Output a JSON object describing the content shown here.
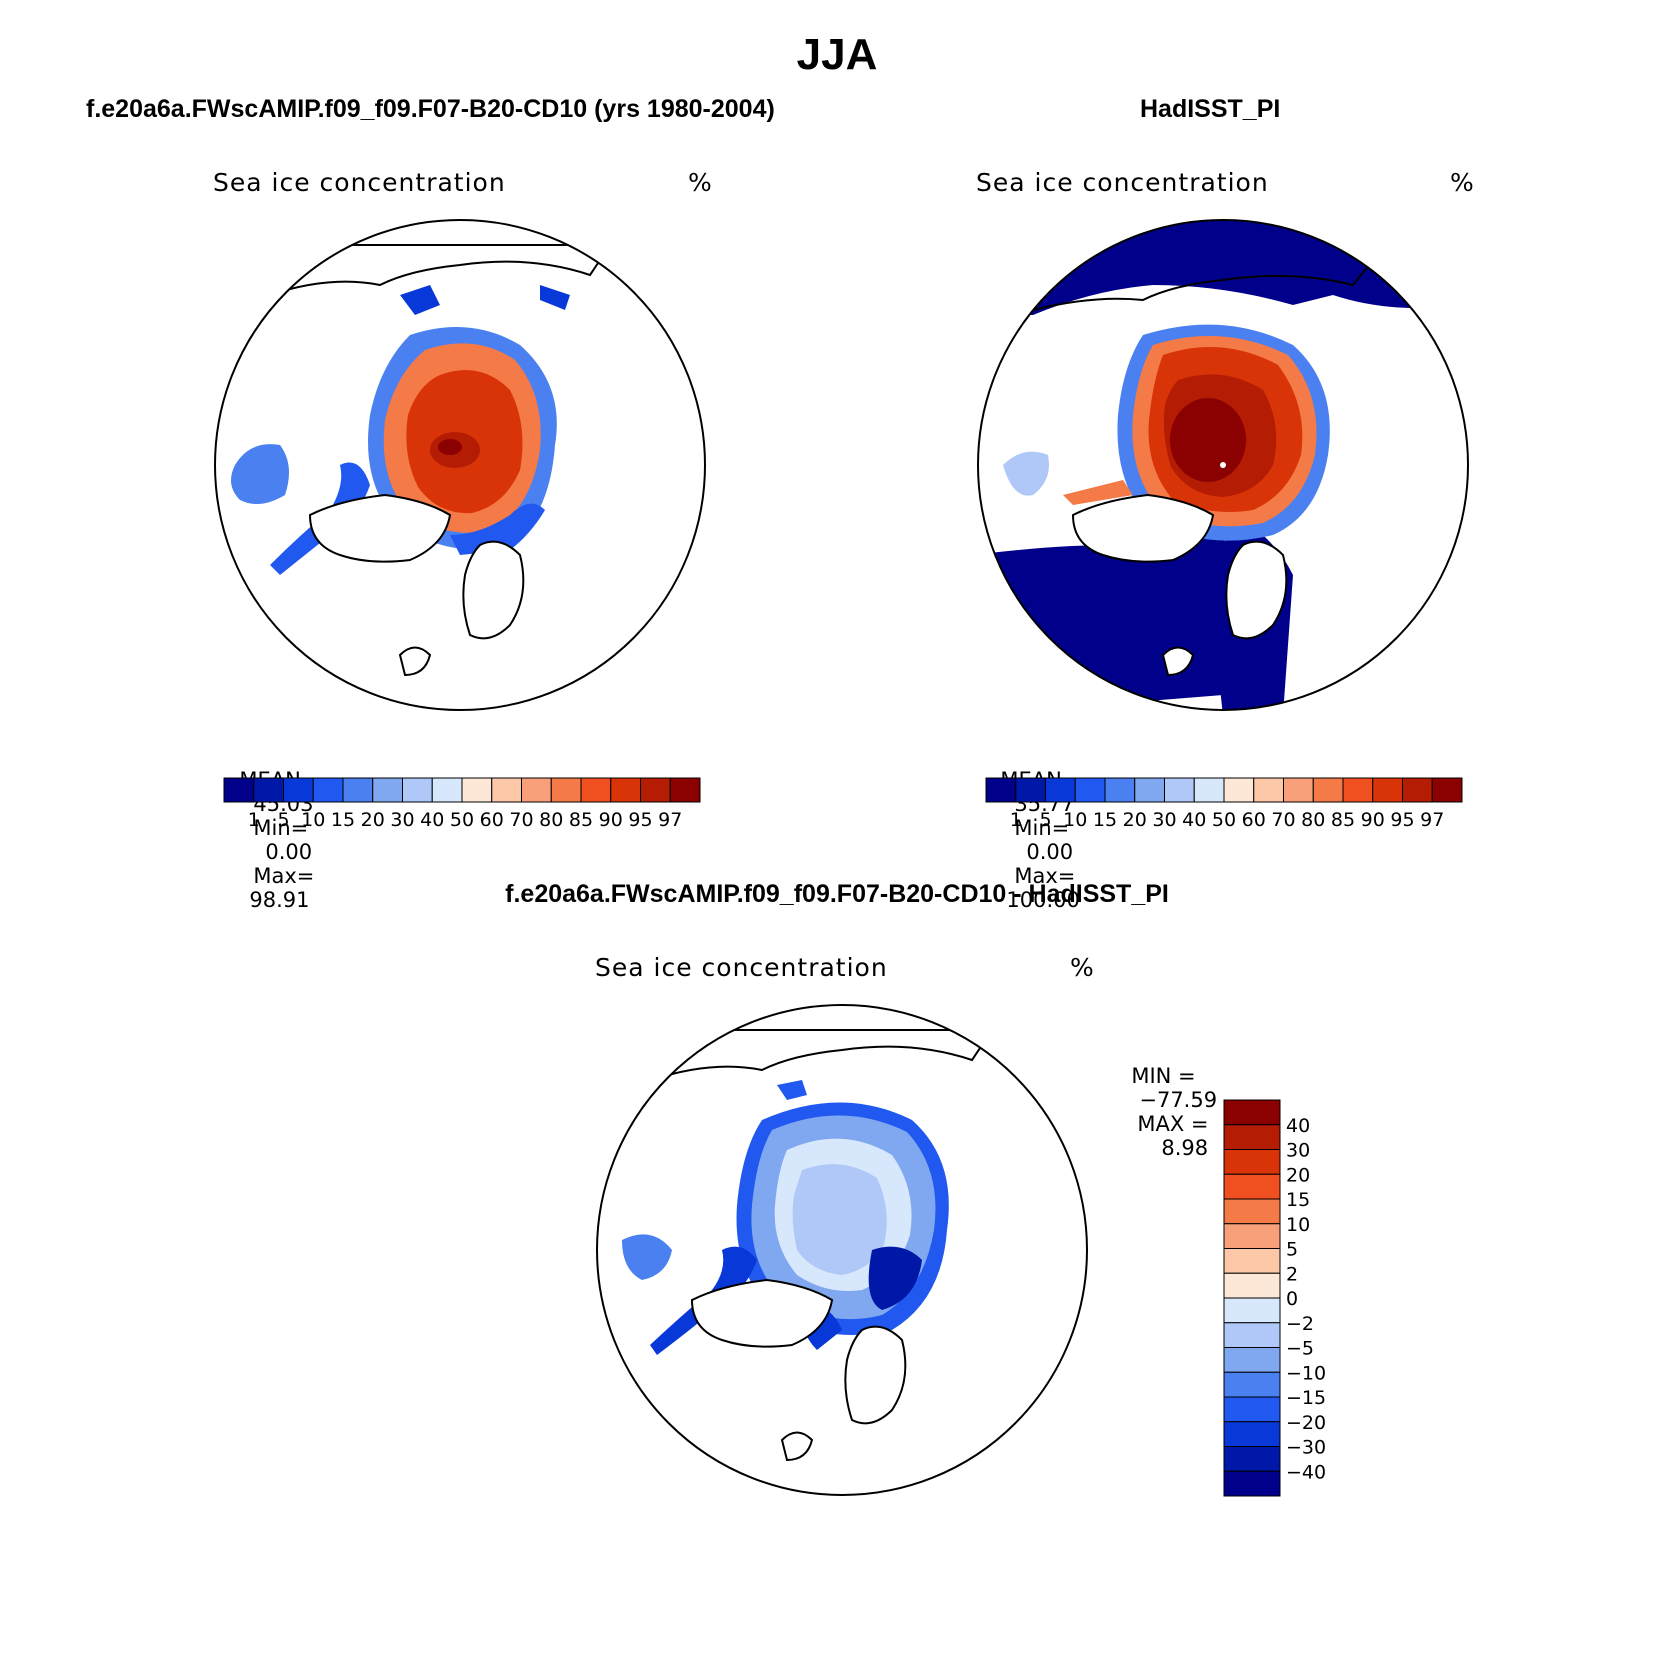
{
  "main_title": "JJA",
  "panels": [
    {
      "id": "model",
      "header": "f.e20a6a.FWscAMIP.f09_f09.F07-B20-CD10 (yrs 1980-2004)",
      "variable": "Sea ice concentration",
      "units": "%",
      "stats": {
        "mean_label": "MEAN=",
        "mean": "45.03",
        "min_label": "Min=",
        "min": "0.00",
        "max_label": "Max=",
        "max": "98.91"
      }
    },
    {
      "id": "obs",
      "header": "HadISST_PI",
      "variable": "Sea ice concentration",
      "units": "%",
      "stats": {
        "mean_label": "MEAN=",
        "mean": "35.77",
        "min_label": "Min=",
        "min": "0.00",
        "max_label": "Max=",
        "max": "100.00"
      }
    },
    {
      "id": "diff",
      "header": "f.e20a6a.FWscAMIP.f09_f09.F07-B20-CD10 - HadISST_PI",
      "variable": "Sea ice concentration",
      "units": "%",
      "stats": {
        "min_label": "MIN =",
        "min": "−77.59",
        "max_label": "MAX =",
        "max": "8.98"
      }
    }
  ],
  "colorbars": {
    "concentration": {
      "colors": [
        "#00008b",
        "#0018a8",
        "#0838d8",
        "#2058f0",
        "#4a80f0",
        "#80a8f0",
        "#b0c8f8",
        "#d8e8fc",
        "#fde8d8",
        "#fcc8a8",
        "#f8a07a",
        "#f47a48",
        "#f05020",
        "#d83408",
        "#b41c04",
        "#8b0000"
      ],
      "labels": [
        "1",
        "5",
        "10",
        "15",
        "20",
        "30",
        "40",
        "50",
        "60",
        "70",
        "80",
        "85",
        "90",
        "95",
        "97"
      ]
    },
    "difference": {
      "colors": [
        "#8b0000",
        "#b41c04",
        "#d83408",
        "#f05020",
        "#f47a48",
        "#f8a07a",
        "#fcc8a8",
        "#fde8d8",
        "#d8e8fc",
        "#b0c8f8",
        "#80a8f0",
        "#4a80f0",
        "#2058f0",
        "#0838d8",
        "#0018a8",
        "#00008b"
      ],
      "labels": [
        "40",
        "30",
        "20",
        "15",
        "10",
        "5",
        "2",
        "0",
        "−2",
        "−5",
        "−10",
        "−15",
        "−20",
        "−30",
        "−40"
      ]
    }
  }
}
